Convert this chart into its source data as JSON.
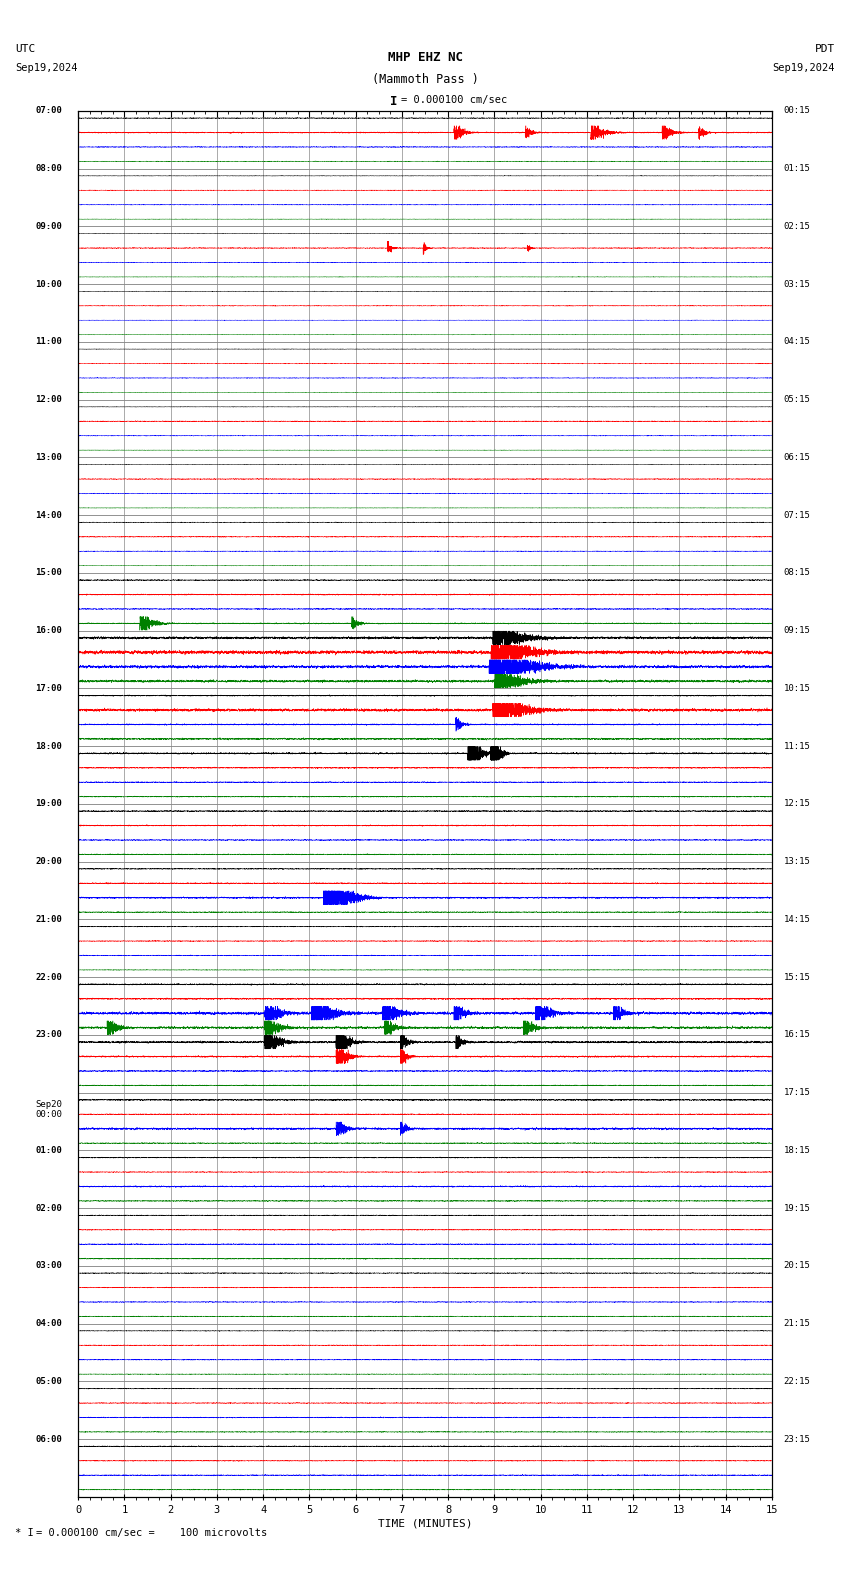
{
  "title_line1": "MHP EHZ NC",
  "title_line2": "(Mammoth Pass )",
  "scale_text": "= 0.000100 cm/sec",
  "scale_bracket": "I",
  "utc_label": "UTC",
  "pdt_label": "PDT",
  "date_left": "Sep19,2024",
  "date_right": "Sep19,2024",
  "xlabel": "TIME (MINUTES)",
  "footer": "= 0.000100 cm/sec =    100 microvolts",
  "footer_bracket": "* I",
  "bg_color": "#ffffff",
  "grid_color": "#888888",
  "colors": [
    "black",
    "red",
    "blue",
    "green"
  ],
  "n_rows": 24,
  "n_traces_per_row": 4,
  "left_labels_utc": [
    "07:00",
    "08:00",
    "09:00",
    "10:00",
    "11:00",
    "12:00",
    "13:00",
    "14:00",
    "15:00",
    "16:00",
    "17:00",
    "18:00",
    "19:00",
    "20:00",
    "21:00",
    "22:00",
    "23:00",
    "Sep20\n00:00",
    "01:00",
    "02:00",
    "03:00",
    "04:00",
    "05:00",
    "06:00"
  ],
  "right_labels_pdt": [
    "00:15",
    "01:15",
    "02:15",
    "03:15",
    "04:15",
    "05:15",
    "06:15",
    "07:15",
    "08:15",
    "09:15",
    "10:15",
    "11:15",
    "12:15",
    "13:15",
    "14:15",
    "15:15",
    "16:15",
    "17:15",
    "18:15",
    "19:15",
    "20:15",
    "21:15",
    "22:15",
    "23:15"
  ],
  "xmin": 0,
  "xmax": 15,
  "xticks": [
    0,
    1,
    2,
    3,
    4,
    5,
    6,
    7,
    8,
    9,
    10,
    11,
    12,
    13,
    14,
    15
  ],
  "noise_seed": 12345
}
